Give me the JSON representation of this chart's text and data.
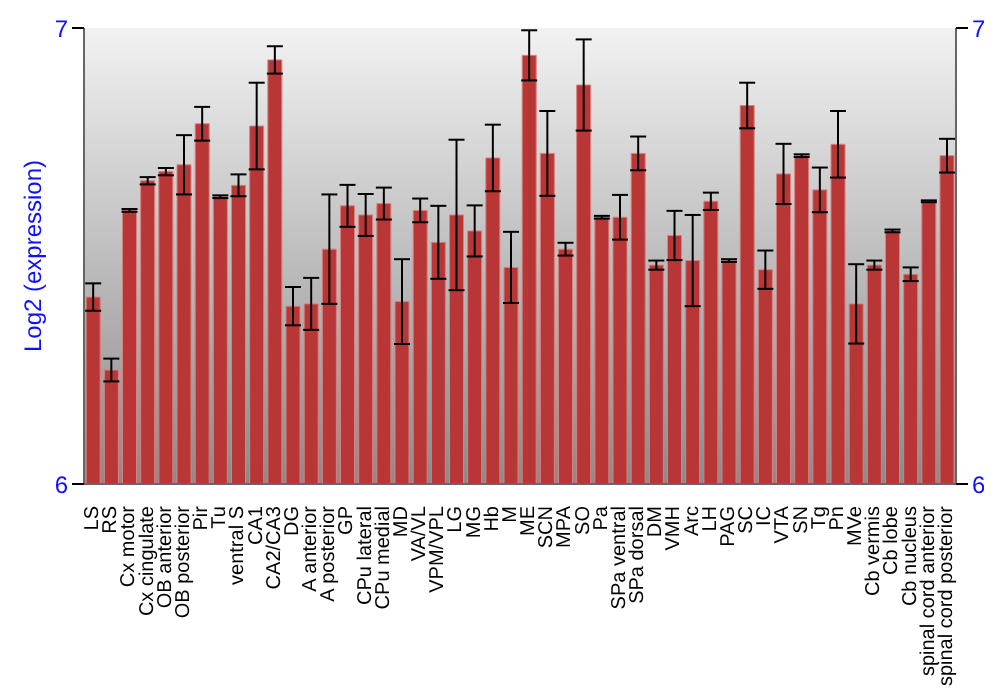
{
  "chart_data": {
    "type": "bar",
    "ylabel": "Log2 (expression)",
    "categories": [
      "LS",
      "RS",
      "Cx motor",
      "Cx cingulate",
      "OB anterior",
      "OB posterior",
      "Pir",
      "Tu",
      "ventral S",
      "CA1",
      "CA2/CA3",
      "DG",
      "A anterior",
      "A posterior",
      "GP",
      "CPu lateral",
      "CPu medial",
      "MD",
      "VA/VL",
      "VPM/VPL",
      "LG",
      "MG",
      "Hb",
      "M",
      "ME",
      "SCN",
      "MPA",
      "SO",
      "Pa",
      "SPa ventral",
      "SPa dorsal",
      "DM",
      "VMH",
      "Arc",
      "LH",
      "PAG",
      "SC",
      "IC",
      "VTA",
      "SN",
      "Tg",
      "Pn",
      "MVe",
      "Cb vermis",
      "Cb lobe",
      "Cb nucleus",
      "spinal cord anterior",
      "spinal cord posterior"
    ],
    "values": [
      6.41,
      6.25,
      6.6,
      6.665,
      6.685,
      6.7,
      6.79,
      6.63,
      6.655,
      6.785,
      6.93,
      6.39,
      6.395,
      6.515,
      6.61,
      6.59,
      6.615,
      6.4,
      6.6,
      6.53,
      6.59,
      6.555,
      6.715,
      6.475,
      6.94,
      6.725,
      6.515,
      6.875,
      6.585,
      6.585,
      6.725,
      6.48,
      6.545,
      6.49,
      6.62,
      6.49,
      6.83,
      6.47,
      6.68,
      6.72,
      6.645,
      6.745,
      6.395,
      6.48,
      6.555,
      6.46,
      6.62,
      6.72
    ],
    "errors": [
      0.03,
      0.025,
      0.003,
      0.008,
      0.008,
      0.065,
      0.037,
      0.003,
      0.024,
      0.095,
      0.03,
      0.042,
      0.057,
      0.12,
      0.046,
      0.046,
      0.035,
      0.093,
      0.026,
      0.08,
      0.165,
      0.056,
      0.073,
      0.078,
      0.055,
      0.093,
      0.014,
      0.1,
      0.003,
      0.049,
      0.037,
      0.01,
      0.054,
      0.1,
      0.019,
      0.003,
      0.05,
      0.042,
      0.066,
      0.003,
      0.049,
      0.073,
      0.087,
      0.01,
      0.003,
      0.015,
      0.002,
      0.037
    ],
    "color": "#b83636",
    "ylim": [
      6,
      7
    ],
    "yticks": [
      6,
      7
    ],
    "y2lim": [
      6,
      7
    ],
    "y2ticks": [
      6,
      7
    ],
    "grid": false
  }
}
